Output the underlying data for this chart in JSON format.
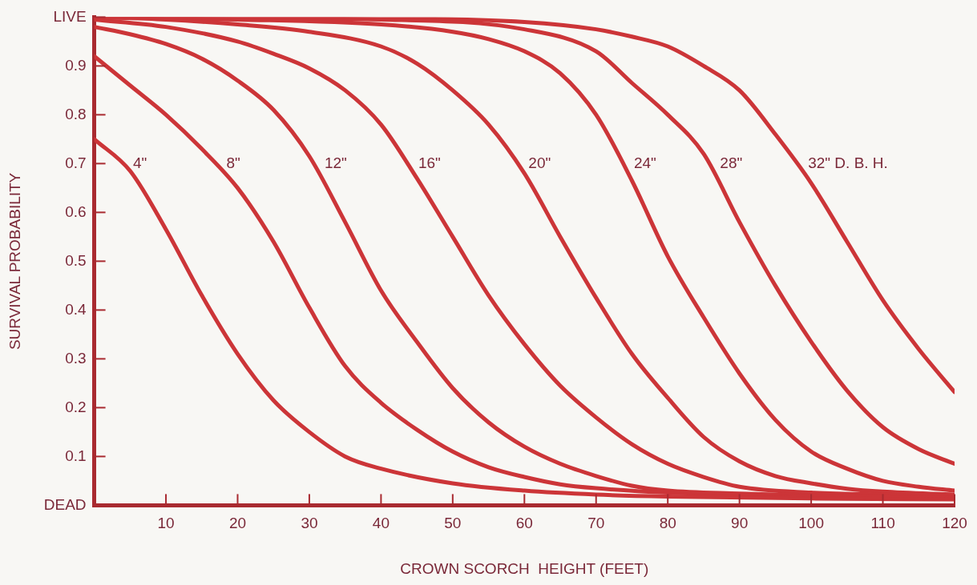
{
  "chart_data": {
    "type": "line",
    "xlabel": "CROWN SCORCH  HEIGHT (FEET)",
    "ylabel": "SURVIVAL PROBABILITY",
    "xlim": [
      0,
      120
    ],
    "xticks": [
      10,
      20,
      30,
      40,
      50,
      60,
      70,
      80,
      90,
      100,
      110,
      120
    ],
    "ylim": [
      0,
      1
    ],
    "yticks": [
      {
        "value": 0,
        "label": "DEAD"
      },
      0.1,
      0.2,
      0.3,
      0.4,
      0.5,
      0.6,
      0.7,
      0.8,
      0.9,
      {
        "value": 1,
        "label": "LIVE"
      }
    ],
    "legend": false,
    "marker": "none",
    "line_style": "solid",
    "series": [
      {
        "name": "4\"",
        "color": "#cc3538",
        "x": [
          0,
          5,
          10,
          15,
          20,
          25,
          30,
          35,
          40,
          50,
          60,
          70,
          80,
          100,
          120
        ],
        "values": [
          0.75,
          0.685,
          0.565,
          0.43,
          0.31,
          0.215,
          0.15,
          0.1,
          0.075,
          0.045,
          0.03,
          0.022,
          0.018,
          0.014,
          0.012
        ]
      },
      {
        "name": "8\"",
        "color": "#cc3538",
        "x": [
          0,
          5,
          10,
          15,
          20,
          25,
          30,
          35,
          40,
          45,
          50,
          55,
          60,
          65,
          70,
          80,
          100,
          120
        ],
        "values": [
          0.92,
          0.86,
          0.8,
          0.73,
          0.65,
          0.54,
          0.405,
          0.285,
          0.21,
          0.155,
          0.11,
          0.078,
          0.058,
          0.043,
          0.035,
          0.026,
          0.018,
          0.015
        ]
      },
      {
        "name": "12\"",
        "color": "#cc3538",
        "x": [
          0,
          5,
          10,
          15,
          20,
          25,
          30,
          35,
          40,
          45,
          50,
          55,
          60,
          65,
          70,
          75,
          80,
          90,
          100,
          120
        ],
        "values": [
          0.98,
          0.965,
          0.945,
          0.915,
          0.87,
          0.81,
          0.715,
          0.58,
          0.44,
          0.335,
          0.24,
          0.17,
          0.12,
          0.085,
          0.06,
          0.04,
          0.03,
          0.024,
          0.02,
          0.016
        ]
      },
      {
        "name": "16\"",
        "color": "#cc3538",
        "x": [
          0,
          10,
          20,
          25,
          30,
          35,
          40,
          45,
          50,
          55,
          60,
          65,
          70,
          75,
          80,
          85,
          90,
          100,
          110,
          120
        ],
        "values": [
          0.995,
          0.98,
          0.95,
          0.925,
          0.895,
          0.85,
          0.78,
          0.67,
          0.55,
          0.43,
          0.33,
          0.245,
          0.18,
          0.125,
          0.085,
          0.058,
          0.038,
          0.026,
          0.022,
          0.02
        ]
      },
      {
        "name": "20\"",
        "color": "#cc3538",
        "x": [
          0,
          10,
          20,
          30,
          40,
          45,
          50,
          55,
          60,
          65,
          70,
          75,
          80,
          85,
          90,
          95,
          100,
          105,
          110,
          120
        ],
        "values": [
          1.0,
          0.995,
          0.985,
          0.97,
          0.94,
          0.905,
          0.85,
          0.78,
          0.68,
          0.55,
          0.425,
          0.31,
          0.22,
          0.14,
          0.09,
          0.06,
          0.045,
          0.034,
          0.028,
          0.022
        ]
      },
      {
        "name": "24\"",
        "color": "#cc3538",
        "x": [
          0,
          20,
          40,
          50,
          55,
          60,
          65,
          70,
          75,
          80,
          85,
          90,
          95,
          100,
          105,
          110,
          115,
          120
        ],
        "values": [
          1.0,
          0.995,
          0.985,
          0.97,
          0.955,
          0.93,
          0.885,
          0.8,
          0.665,
          0.51,
          0.385,
          0.27,
          0.175,
          0.11,
          0.075,
          0.05,
          0.038,
          0.03
        ]
      },
      {
        "name": "28\"",
        "color": "#cc3538",
        "x": [
          0,
          40,
          60,
          70,
          75,
          80,
          85,
          90,
          95,
          100,
          105,
          110,
          115,
          120
        ],
        "values": [
          1.0,
          0.995,
          0.975,
          0.93,
          0.865,
          0.8,
          0.72,
          0.58,
          0.45,
          0.335,
          0.235,
          0.16,
          0.115,
          0.085
        ]
      },
      {
        "name": "32\" D. B. H.",
        "color": "#cc3538",
        "x": [
          0,
          40,
          60,
          70,
          75,
          80,
          85,
          90,
          95,
          100,
          105,
          110,
          115,
          120
        ],
        "values": [
          1.0,
          0.998,
          0.99,
          0.975,
          0.96,
          0.94,
          0.9,
          0.85,
          0.76,
          0.66,
          0.54,
          0.42,
          0.32,
          0.232
        ]
      }
    ]
  }
}
